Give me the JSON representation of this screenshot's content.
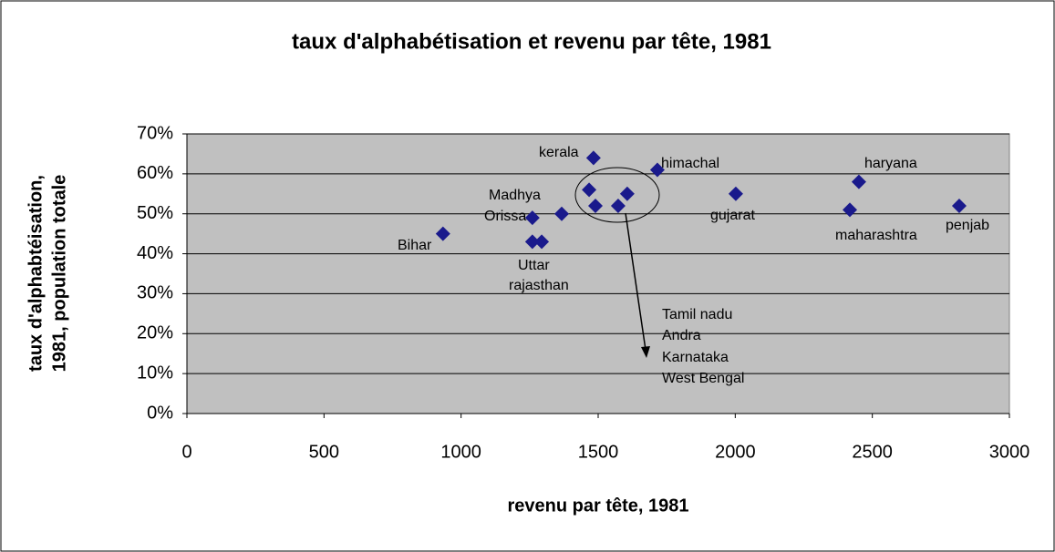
{
  "chart_data": {
    "type": "scatter",
    "title": "taux d'alphabétisation et revenu par tête, 1981",
    "x_label": "revenu par tête, 1981",
    "y_label": [
      "taux d'alphabtéisation,",
      "1981, population totale"
    ],
    "x": [
      934,
      1260,
      1260,
      1294,
      1367,
      1483,
      1490,
      1467,
      1573,
      1606,
      1716,
      2002,
      2418,
      2451,
      2817
    ],
    "y": [
      45,
      49,
      43,
      43,
      50,
      64,
      52,
      56,
      52,
      55,
      61,
      55,
      51,
      58,
      52
    ],
    "color": "#1a1a8c",
    "xlim": [
      0,
      3000
    ],
    "xticks": [
      0,
      500,
      1000,
      1500,
      2000,
      2500,
      3000
    ],
    "ylim": [
      0,
      70
    ],
    "yticks": [
      {
        "value": 0,
        "label": "0%"
      },
      {
        "value": 10,
        "label": "10%"
      },
      {
        "value": 20,
        "label": "20%"
      },
      {
        "value": 30,
        "label": "30%"
      },
      {
        "value": 40,
        "label": "40%"
      },
      {
        "value": 50,
        "label": "50%"
      },
      {
        "value": 60,
        "label": "60%"
      },
      {
        "value": 70,
        "label": "70%"
      }
    ],
    "grid": true,
    "annotations": [
      "kerala",
      "himachal",
      "haryana",
      "Madhya",
      "Orissa",
      "Bihar",
      "gujarat",
      "maharashtra",
      "penjab",
      "Uttar",
      "rajasthan",
      "Tamil nadu",
      "Andra",
      "Karnataka",
      "West Bengal"
    ]
  }
}
